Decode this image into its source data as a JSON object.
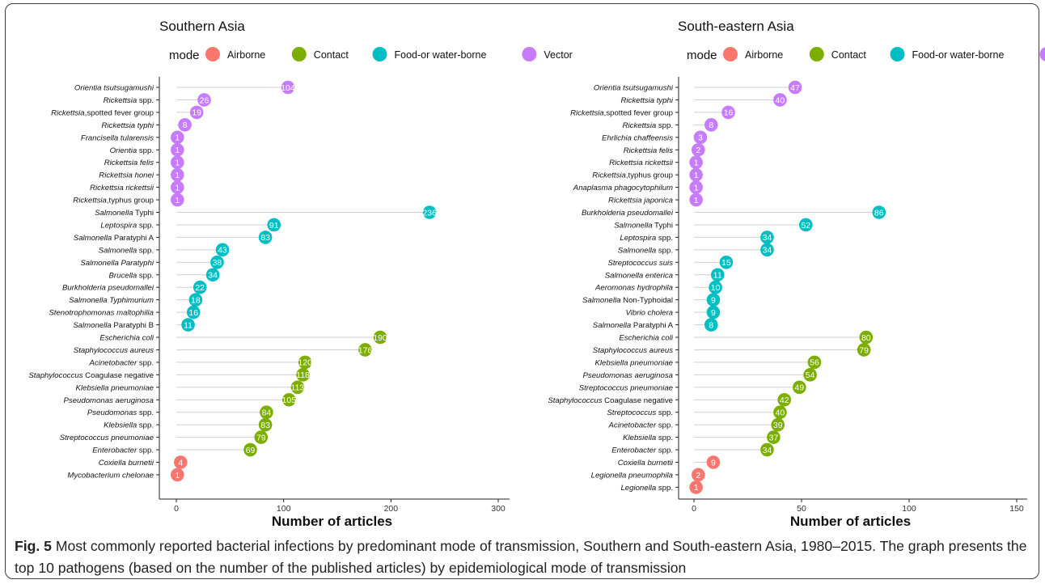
{
  "figure": {
    "caption_label": "Fig. 5",
    "caption_text": "Most commonly reported bacterial infections by predominant mode of transmission, Southern and South-eastern Asia, 1980–2015. The graph presents the top 10 pathogens (based on the number of the published articles) by epidemiological mode of transmission"
  },
  "legend": {
    "title": "mode",
    "items": [
      {
        "label": "Airborne",
        "color": "#F8766D"
      },
      {
        "label": "Contact",
        "color": "#7CAE00"
      },
      {
        "label": "Food-or water-borne",
        "color": "#00BFC4"
      },
      {
        "label": "Vector",
        "color": "#C77CFF"
      }
    ]
  },
  "chart_data": [
    {
      "type": "lollipop",
      "title": "Southern Asia",
      "xlabel": "Number of articles",
      "ylabel": "",
      "xlim": [
        0,
        300
      ],
      "xticks": [
        0,
        100,
        200,
        300
      ],
      "legend_position": "top",
      "grid": false,
      "rows": [
        {
          "name": [
            {
              "t": "Orientia tsutsugamushi",
              "i": true
            }
          ],
          "value": 104,
          "mode": "Vector"
        },
        {
          "name": [
            {
              "t": "Rickettsia",
              "i": true
            },
            {
              "t": " spp.",
              "i": false
            }
          ],
          "value": 26,
          "mode": "Vector"
        },
        {
          "name": [
            {
              "t": "Rickettsia",
              "i": true
            },
            {
              "t": ",spotted fever group",
              "i": false
            }
          ],
          "value": 19,
          "mode": "Vector"
        },
        {
          "name": [
            {
              "t": "Rickettsia typhi",
              "i": true
            }
          ],
          "value": 8,
          "mode": "Vector"
        },
        {
          "name": [
            {
              "t": "Francisella tularensis",
              "i": true
            }
          ],
          "value": 1,
          "mode": "Vector"
        },
        {
          "name": [
            {
              "t": "Orientia",
              "i": true
            },
            {
              "t": " spp.",
              "i": false
            }
          ],
          "value": 1,
          "mode": "Vector"
        },
        {
          "name": [
            {
              "t": "Rickettsia felis",
              "i": true
            }
          ],
          "value": 1,
          "mode": "Vector"
        },
        {
          "name": [
            {
              "t": "Rickettsia honei",
              "i": true
            }
          ],
          "value": 1,
          "mode": "Vector"
        },
        {
          "name": [
            {
              "t": "Rickettsia rickettsii",
              "i": true
            }
          ],
          "value": 1,
          "mode": "Vector"
        },
        {
          "name": [
            {
              "t": "Rickettsia",
              "i": true
            },
            {
              "t": ",typhus group",
              "i": false
            }
          ],
          "value": 1,
          "mode": "Vector"
        },
        {
          "name": [
            {
              "t": "Salmonella",
              "i": true
            },
            {
              "t": " Typhi",
              "i": false
            }
          ],
          "value": 236,
          "mode": "Food-or water-borne"
        },
        {
          "name": [
            {
              "t": "Leptospira",
              "i": true
            },
            {
              "t": " spp.",
              "i": false
            }
          ],
          "value": 91,
          "mode": "Food-or water-borne"
        },
        {
          "name": [
            {
              "t": "Salmonella",
              "i": true
            },
            {
              "t": " Paratyphi A",
              "i": false
            }
          ],
          "value": 83,
          "mode": "Food-or water-borne"
        },
        {
          "name": [
            {
              "t": "Salmonella",
              "i": true
            },
            {
              "t": " spp.",
              "i": false
            }
          ],
          "value": 43,
          "mode": "Food-or water-borne"
        },
        {
          "name": [
            {
              "t": "Salmonella Paratyphi",
              "i": true
            }
          ],
          "value": 38,
          "mode": "Food-or water-borne"
        },
        {
          "name": [
            {
              "t": "Brucella",
              "i": true
            },
            {
              "t": " spp.",
              "i": false
            }
          ],
          "value": 34,
          "mode": "Food-or water-borne"
        },
        {
          "name": [
            {
              "t": "Burkholderia pseudomallei",
              "i": true
            }
          ],
          "value": 22,
          "mode": "Food-or water-borne"
        },
        {
          "name": [
            {
              "t": "Salmonella Typhimurium",
              "i": true
            }
          ],
          "value": 18,
          "mode": "Food-or water-borne"
        },
        {
          "name": [
            {
              "t": "Stenotrophomonas maltophilia",
              "i": true
            }
          ],
          "value": 16,
          "mode": "Food-or water-borne"
        },
        {
          "name": [
            {
              "t": "Salmonella",
              "i": true
            },
            {
              "t": " Paratyphi B",
              "i": false
            }
          ],
          "value": 11,
          "mode": "Food-or water-borne"
        },
        {
          "name": [
            {
              "t": "Escherichia coli",
              "i": true
            }
          ],
          "value": 190,
          "mode": "Contact"
        },
        {
          "name": [
            {
              "t": "Staphylococcus aureus",
              "i": true
            }
          ],
          "value": 176,
          "mode": "Contact"
        },
        {
          "name": [
            {
              "t": "Acinetobacter",
              "i": true
            },
            {
              "t": " spp.",
              "i": false
            }
          ],
          "value": 120,
          "mode": "Contact"
        },
        {
          "name": [
            {
              "t": "Staphylococcus",
              "i": true
            },
            {
              "t": " Coagulase negative",
              "i": false
            }
          ],
          "value": 118,
          "mode": "Contact"
        },
        {
          "name": [
            {
              "t": "Klebsiella pneumoniae",
              "i": true
            }
          ],
          "value": 113,
          "mode": "Contact"
        },
        {
          "name": [
            {
              "t": "Pseudomonas aeruginosa",
              "i": true
            }
          ],
          "value": 105,
          "mode": "Contact"
        },
        {
          "name": [
            {
              "t": "Pseudomonas",
              "i": true
            },
            {
              "t": " spp.",
              "i": false
            }
          ],
          "value": 84,
          "mode": "Contact"
        },
        {
          "name": [
            {
              "t": "Klebsiella",
              "i": true
            },
            {
              "t": " spp.",
              "i": false
            }
          ],
          "value": 83,
          "mode": "Contact"
        },
        {
          "name": [
            {
              "t": "Streptococcus pneumoniae",
              "i": true
            }
          ],
          "value": 79,
          "mode": "Contact"
        },
        {
          "name": [
            {
              "t": "Enterobacter",
              "i": true
            },
            {
              "t": " spp.",
              "i": false
            }
          ],
          "value": 69,
          "mode": "Contact"
        },
        {
          "name": [
            {
              "t": "Coxiella burnetii",
              "i": true
            }
          ],
          "value": 4,
          "mode": "Airborne"
        },
        {
          "name": [
            {
              "t": "Mycobacterium chelonae",
              "i": true
            }
          ],
          "value": 1,
          "mode": "Airborne"
        }
      ]
    },
    {
      "type": "lollipop",
      "title": "South-eastern Asia",
      "xlabel": "Number of articles",
      "ylabel": "",
      "xlim": [
        0,
        150
      ],
      "xticks": [
        0,
        50,
        100,
        150
      ],
      "legend_position": "top",
      "grid": false,
      "rows": [
        {
          "name": [
            {
              "t": "Orientia tsutsugamushi",
              "i": true
            }
          ],
          "value": 47,
          "mode": "Vector"
        },
        {
          "name": [
            {
              "t": "Rickettsia typhi",
              "i": true
            }
          ],
          "value": 40,
          "mode": "Vector"
        },
        {
          "name": [
            {
              "t": "Rickettsia",
              "i": true
            },
            {
              "t": ",spotted fever group",
              "i": false
            }
          ],
          "value": 16,
          "mode": "Vector"
        },
        {
          "name": [
            {
              "t": "Rickettsia",
              "i": true
            },
            {
              "t": " spp.",
              "i": false
            }
          ],
          "value": 8,
          "mode": "Vector"
        },
        {
          "name": [
            {
              "t": "Ehrlichia chaffeensis",
              "i": true
            }
          ],
          "value": 3,
          "mode": "Vector"
        },
        {
          "name": [
            {
              "t": "Rickettsia felis",
              "i": true
            }
          ],
          "value": 2,
          "mode": "Vector"
        },
        {
          "name": [
            {
              "t": "Rickettsia rickettsii",
              "i": true
            }
          ],
          "value": 1,
          "mode": "Vector"
        },
        {
          "name": [
            {
              "t": "Rickettsia",
              "i": true
            },
            {
              "t": ",typhus group",
              "i": false
            }
          ],
          "value": 1,
          "mode": "Vector"
        },
        {
          "name": [
            {
              "t": "Anaplasma phagocytophilum",
              "i": true
            }
          ],
          "value": 1,
          "mode": "Vector"
        },
        {
          "name": [
            {
              "t": "Rickettsia japonica",
              "i": true
            }
          ],
          "value": 1,
          "mode": "Vector"
        },
        {
          "name": [
            {
              "t": "Burkholderia pseudomallei",
              "i": true
            }
          ],
          "value": 86,
          "mode": "Food-or water-borne"
        },
        {
          "name": [
            {
              "t": "Salmonella",
              "i": true
            },
            {
              "t": " Typhi",
              "i": false
            }
          ],
          "value": 52,
          "mode": "Food-or water-borne"
        },
        {
          "name": [
            {
              "t": "Leptospira",
              "i": true
            },
            {
              "t": " spp.",
              "i": false
            }
          ],
          "value": 34,
          "mode": "Food-or water-borne"
        },
        {
          "name": [
            {
              "t": "Salmonella",
              "i": true
            },
            {
              "t": " spp.",
              "i": false
            }
          ],
          "value": 34,
          "mode": "Food-or water-borne"
        },
        {
          "name": [
            {
              "t": "Streptococcus suis",
              "i": true
            }
          ],
          "value": 15,
          "mode": "Food-or water-borne"
        },
        {
          "name": [
            {
              "t": "Salmonella enterica",
              "i": true
            }
          ],
          "value": 11,
          "mode": "Food-or water-borne"
        },
        {
          "name": [
            {
              "t": "Aeromonas hydrophila",
              "i": true
            }
          ],
          "value": 10,
          "mode": "Food-or water-borne"
        },
        {
          "name": [
            {
              "t": "Salmonella",
              "i": true
            },
            {
              "t": " Non-Typhoidal",
              "i": false
            }
          ],
          "value": 9,
          "mode": "Food-or water-borne"
        },
        {
          "name": [
            {
              "t": "Vibrio cholera",
              "i": true
            }
          ],
          "value": 9,
          "mode": "Food-or water-borne"
        },
        {
          "name": [
            {
              "t": "Salmonella",
              "i": true
            },
            {
              "t": " Paratyphi A",
              "i": false
            }
          ],
          "value": 8,
          "mode": "Food-or water-borne"
        },
        {
          "name": [
            {
              "t": "Escherichia coli",
              "i": true
            }
          ],
          "value": 80,
          "mode": "Contact"
        },
        {
          "name": [
            {
              "t": "Staphylococcus aureus",
              "i": true
            }
          ],
          "value": 79,
          "mode": "Contact"
        },
        {
          "name": [
            {
              "t": "Klebsiella pneumoniae",
              "i": true
            }
          ],
          "value": 56,
          "mode": "Contact"
        },
        {
          "name": [
            {
              "t": "Pseudomonas aeruginosa",
              "i": true
            }
          ],
          "value": 54,
          "mode": "Contact"
        },
        {
          "name": [
            {
              "t": "Streptococcus pneumoniae",
              "i": true
            }
          ],
          "value": 49,
          "mode": "Contact"
        },
        {
          "name": [
            {
              "t": "Staphylococcus",
              "i": true
            },
            {
              "t": " Coagulase negative",
              "i": false
            }
          ],
          "value": 42,
          "mode": "Contact"
        },
        {
          "name": [
            {
              "t": "Streptococcus",
              "i": true
            },
            {
              "t": " spp.",
              "i": false
            }
          ],
          "value": 40,
          "mode": "Contact"
        },
        {
          "name": [
            {
              "t": "Acinetobacter",
              "i": true
            },
            {
              "t": " spp.",
              "i": false
            }
          ],
          "value": 39,
          "mode": "Contact"
        },
        {
          "name": [
            {
              "t": "Klebsiella",
              "i": true
            },
            {
              "t": " spp.",
              "i": false
            }
          ],
          "value": 37,
          "mode": "Contact"
        },
        {
          "name": [
            {
              "t": "Enterobacter",
              "i": true
            },
            {
              "t": " spp.",
              "i": false
            }
          ],
          "value": 34,
          "mode": "Contact"
        },
        {
          "name": [
            {
              "t": "Coxiella burnetii",
              "i": true
            }
          ],
          "value": 9,
          "mode": "Airborne"
        },
        {
          "name": [
            {
              "t": "Legionella pneumophila",
              "i": true
            }
          ],
          "value": 2,
          "mode": "Airborne"
        },
        {
          "name": [
            {
              "t": "Legionella",
              "i": true
            },
            {
              "t": " spp.",
              "i": false
            }
          ],
          "value": 1,
          "mode": "Airborne"
        }
      ]
    }
  ]
}
